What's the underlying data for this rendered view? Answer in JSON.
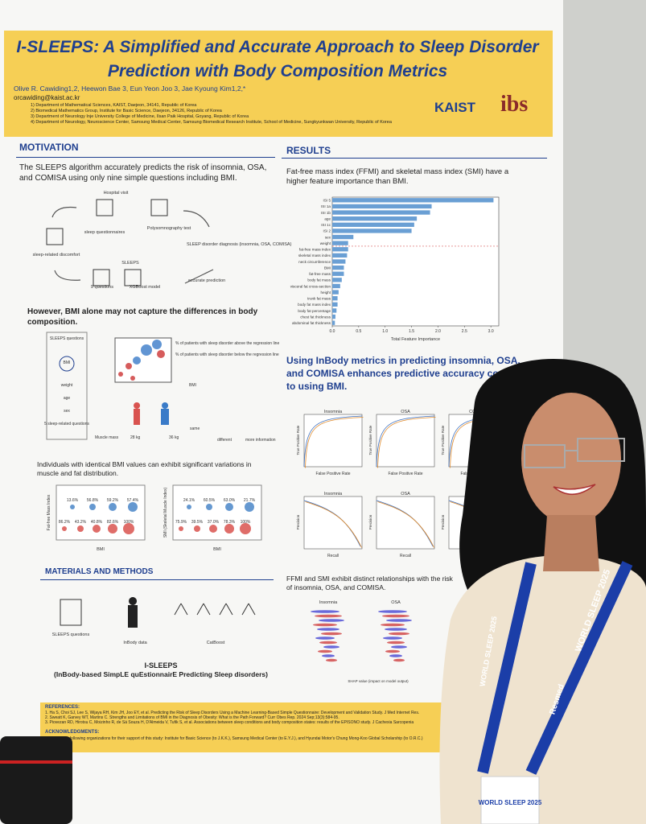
{
  "header": {
    "title": "I-SLEEPS: A Simplified and Accurate Approach to Sleep Disorder Prediction with Body Composition Metrics",
    "authors": "Olive R. Cawiding1,2, Heewon Bae 3, Eun Yeon Joo 3, Jae Kyoung Kim1,2,*",
    "email": "orcawiding@kaist.ac.kr",
    "affiliations": [
      "1) Department of Mathematical Sciences, KAIST, Daejeon, 34141, Republic of Korea",
      "2) Biomedical Mathematics Group, Institute for Basic Science, Daejeon, 34126, Republic of Korea",
      "3) Department of Neurology Inje University College of Medicine, Ilsan Paik Hospital, Goyang, Republic of Korea",
      "4) Department of Neurology, Neuroscience Center, Samsung Medical Center, Samsung Biomedical Research Institute, School of Medicine, Sungkyunkwan University, Republic of Korea"
    ],
    "logos": [
      "KAIST",
      "ibs"
    ]
  },
  "motivation": {
    "heading": "MOTIVATION",
    "text": "The SLEEPS algorithm accurately predicts the risk of insomnia, OSA, and COMISA using only nine simple questions including BMI.",
    "diagram": [
      "Hospital visit",
      "sleep questionnaires",
      "Polysomnography test",
      "sleep-related discomfort",
      "SLEEP disorder diagnosis (insomnia, OSA, COMISA)",
      "SLEEPS",
      "9 questions",
      "XGBoost model",
      "accurate prediction"
    ],
    "subheading": "However, BMI alone may not capture the differences in body composition.",
    "bmi_diagram": [
      "SLEEPS questions",
      "BMI",
      "weight",
      "age",
      "sex",
      "5 sleep-related questions",
      "% of patients with sleep disorder above the regression line",
      "% of patients with sleep disorder below the regression line",
      "BMI",
      "Muscle mass",
      "28 kg",
      "36 kg",
      "same",
      "different",
      "more information"
    ],
    "text2": "Individuals with identical BMI values can exhibit significant variations in muscle and fat distribution.",
    "ffmi_labels": [
      "13.6%",
      "56.8%",
      "59.2%",
      "57.4%",
      "86.2%",
      "43.2%",
      "40.8%",
      "82.6%",
      "100%"
    ],
    "smi_labels": [
      "24.1%",
      "60.5%",
      "63.0%",
      "21.7%",
      "75.9%",
      "39.5%",
      "37.0%",
      "78.3%",
      "100%"
    ],
    "ffmi_axis": "Fat-free Mass Index",
    "smi_axis": "SMI (Skeletal Muscle Index)",
    "bmi_axis": "BMI"
  },
  "methods": {
    "heading": "MATERIALS AND METHODS",
    "items": [
      "SLEEPS questions",
      "InBody data",
      "CatBoost"
    ],
    "name": "I-SLEEPS",
    "expansion": "(InBody-based SimpLE quEstionnairE Predicting Sleep disorders)"
  },
  "results": {
    "heading": "RESULTS",
    "text": "Fat-free mass index (FFMI) and skeletal mass index (SMI) have a higher feature importance than BMI.",
    "heading2": "Using InBody metrics in predicting insomnia, OSA, and COMISA enhances predictive accuracy compared to using BMI.",
    "panels": [
      "Insomnia",
      "OSA",
      "COMISA"
    ],
    "roc_x": "False Positive Rate",
    "roc_y": "True Positive Rate",
    "pr_x": "Recall",
    "pr_y": "Precision",
    "text3": "FFMI and SMI exhibit distinct relationships with the risk of insomnia, OSA, and COMISA.",
    "shap_axis": "SHAP value (impact on model output)"
  },
  "chart_data": {
    "type": "barh",
    "xlabel": "Total Feature Importance",
    "categories": [
      "ISI 5",
      "ISI 1a",
      "ISI 1b",
      "age",
      "ISI 1c",
      "ISI 2",
      "sex",
      "weight",
      "fat-free mass index",
      "skeletal mass index",
      "neck circumference",
      "BMI",
      "fat-free mass",
      "body fat mass",
      "visceral fat cross-section",
      "height",
      "trunk fat mass",
      "body fat mass index",
      "body fat percentage",
      "chest fat thickness",
      "abdominal fat thickness"
    ],
    "values": [
      3.05,
      1.88,
      1.85,
      1.6,
      1.55,
      1.5,
      0.4,
      0.3,
      0.3,
      0.28,
      0.25,
      0.22,
      0.22,
      0.18,
      0.15,
      0.12,
      0.1,
      0.1,
      0.08,
      0.06,
      0.05
    ],
    "color": "#6a9fd4",
    "xlim": [
      0,
      3.15
    ],
    "xticks": [
      {
        "value": 0,
        "label": "0.0"
      },
      {
        "value": 0.5,
        "label": "0.5"
      },
      {
        "value": 1,
        "label": "1.0"
      },
      {
        "value": 1.5,
        "label": "1.5"
      },
      {
        "value": 2,
        "label": "2.0"
      },
      {
        "value": 2.5,
        "label": "2.5"
      },
      {
        "value": 3,
        "label": "3.0"
      }
    ]
  },
  "references": {
    "heading": "REFERENCES:",
    "items": [
      "1. Ha S, Choi SJ, Lee S, Wijaya RH, Kim JH, Joo EY, et al. Predicting the Risk of Sleep Disorders Using a Machine Learning-Based Simple Questionnaire: Development and Validation Study. J Med Internet Res.",
      "2. Sweatt K, Garvey WT, Martins C. Strengths and Limitations of BMI in the Diagnosis of Obesity: What is the Path Forward? Curr Obes Rep. 2024 Sep;13(3):584-95.",
      "3. Piovezan RD, Hirotsu C, Moizinho R, de Sá Souza H, D'Almeida V, Tufik S, et al. Associations between sleep conditions and body composition states: results of the EPISONO study. J Cachexia Sarcopenia"
    ],
    "ack_heading": "ACKNOWLEDGMENTS:",
    "ack": "We thank the following organizations for their support of this study: Institute for Basic Science (to J.K.K.), Samsung Medical Center (to E.Y.J.), and Hyundai Motor's Chung Mong-Koo Global Scholarship (to O.R.C.)"
  },
  "lanyard": [
    "WORLD SLEEP 2025",
    "Resmed"
  ]
}
